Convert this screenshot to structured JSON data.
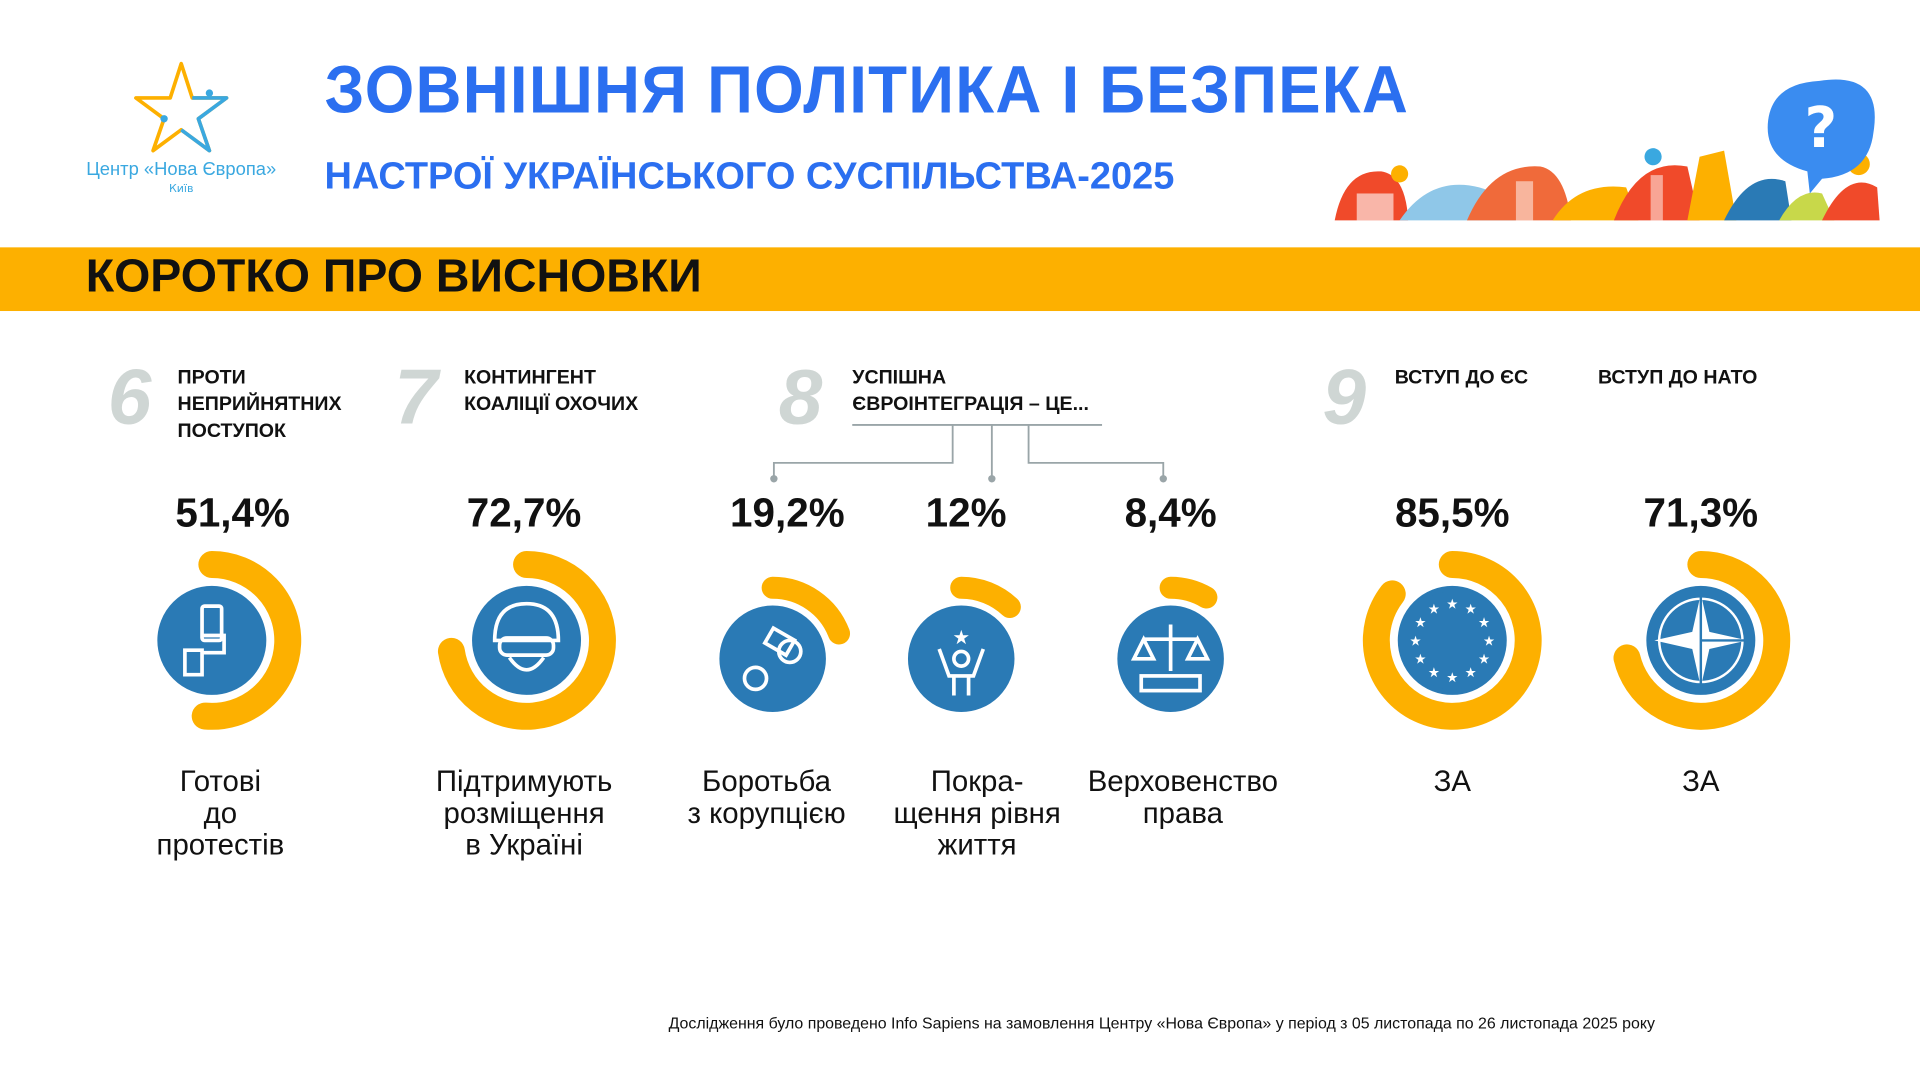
{
  "logo": {
    "name": "Центр «Нова Європа»",
    "city": "Київ"
  },
  "header": {
    "title": "ЗОВНІШНЯ ПОЛІТИКА І БЕЗПЕКА",
    "subtitle": "НАСТРОЇ УКРАЇНСЬКОГО СУСПІЛЬСТВА-2025"
  },
  "band": {
    "title": "КОРОТКО ПРО ВИСНОВКИ"
  },
  "colors": {
    "blue": "#2b6ff0",
    "yellow": "#fdb000",
    "icon_blue": "#2a7ab5"
  },
  "sections": [
    {
      "number": "6",
      "title": [
        "ПРОТИ",
        "НЕПРИЙНЯТНИХ",
        "ПОСТУПОК"
      ]
    },
    {
      "number": "7",
      "title": [
        "КОНТИНГЕНТ",
        "КОАЛІЦІЇ ОХОЧИХ"
      ]
    },
    {
      "number": "8",
      "title": [
        "УСПІШНА",
        "ЄВРОІНТЕГРАЦІЯ – ЦЕ..."
      ]
    },
    {
      "number": "9",
      "title": [
        "ВСТУП ДО ЄС"
      ],
      "title2": [
        "ВСТУП ДО НАТО"
      ]
    }
  ],
  "stats": [
    {
      "value": "51,4%",
      "percent": 51.4,
      "icon": "hand-protest-sign-icon",
      "label": [
        "Готові",
        "до",
        "протестів"
      ]
    },
    {
      "value": "72,7%",
      "percent": 72.7,
      "icon": "soldier-helmet-icon",
      "label": [
        "Підтримують",
        "розміщення",
        "в Україні"
      ]
    },
    {
      "value": "19,2%",
      "percent": 19.2,
      "icon": "handcuffs-money-icon",
      "label": [
        "Боротьба",
        "з корупцією"
      ]
    },
    {
      "value": "12%",
      "percent": 12,
      "icon": "person-stars-icon",
      "label": [
        "Покра-",
        "щення рівня",
        "життя"
      ]
    },
    {
      "value": "8,4%",
      "percent": 8.4,
      "icon": "scales-justice-icon",
      "label": [
        "Верховенство",
        "права"
      ]
    },
    {
      "value": "85,5%",
      "percent": 85.5,
      "icon": "eu-flag-icon",
      "label": [
        "ЗА"
      ]
    },
    {
      "value": "71,3%",
      "percent": 71.3,
      "icon": "nato-star-icon",
      "label": [
        "ЗА"
      ]
    }
  ],
  "footer": "Дослідження було проведено Info Sapiens на замовлення Центру «Нова Європа» у період з 05 листопада по 26 листопада 2025 року"
}
